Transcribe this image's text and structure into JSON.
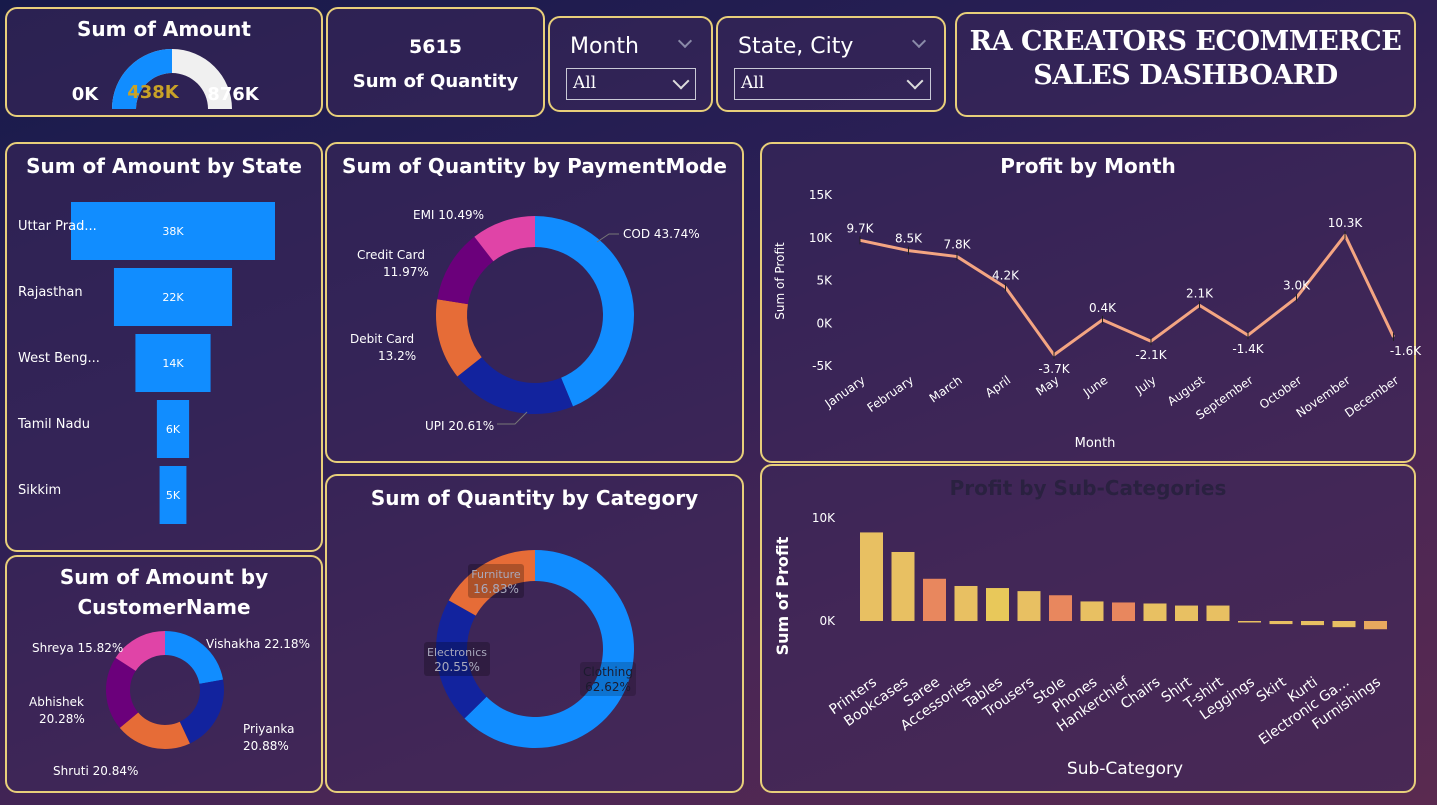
{
  "kpi_amount": {
    "title": "Sum of Amount",
    "min": "0K",
    "value": "438K",
    "max": "876K",
    "fill": 0.5
  },
  "kpi_quantity": {
    "value": "5615",
    "label": "Sum of Quantity"
  },
  "slicer_month": {
    "label": "Month",
    "value": "All"
  },
  "slicer_state": {
    "label": "State, City",
    "value": "All"
  },
  "dashboard_title": {
    "line1": "RA CREATORS ECOMMERCE",
    "line2": "SALES DASHBOARD"
  },
  "colors": {
    "border": "#e8cf7a",
    "blue": "#118dff",
    "navy": "#12239e",
    "orange": "#e66c37",
    "purple": "#6b007b",
    "pink": "#e044a7",
    "line": "#f4a582"
  },
  "chart_data": [
    {
      "id": "amount_by_state",
      "type": "bar",
      "title": "Sum of Amount by State",
      "categories": [
        "Uttar Prad...",
        "Rajasthan",
        "West Beng...",
        "Tamil Nadu",
        "Sikkim"
      ],
      "values": [
        38,
        22,
        14,
        6,
        5
      ],
      "value_labels": [
        "38K",
        "22K",
        "14K",
        "6K",
        "5K"
      ]
    },
    {
      "id": "quantity_by_paymentmode",
      "type": "pie",
      "title": "Sum of Quantity by PaymentMode",
      "slices": [
        {
          "name": "COD",
          "value": 43.74,
          "label": "COD 43.74%"
        },
        {
          "name": "UPI",
          "value": 20.61,
          "label": "UPI 20.61%"
        },
        {
          "name": "Debit Card",
          "value": 13.2,
          "label1": "Debit Card",
          "label2": "13.2%"
        },
        {
          "name": "Credit Card",
          "value": 11.97,
          "label1": "Credit Card",
          "label2": "11.97%"
        },
        {
          "name": "EMI",
          "value": 10.49,
          "label": "EMI 10.49%"
        }
      ]
    },
    {
      "id": "profit_by_month",
      "type": "line",
      "title": "Profit by Month",
      "xlabel": "Month",
      "ylabel": "Sum of Profit",
      "yticks": [
        "15K",
        "10K",
        "5K",
        "0K",
        "-5K"
      ],
      "ylim": [
        -5000,
        15000
      ],
      "categories": [
        "January",
        "February",
        "March",
        "April",
        "May",
        "June",
        "July",
        "August",
        "September",
        "October",
        "November",
        "December"
      ],
      "values": [
        9700,
        8500,
        7800,
        4200,
        -3700,
        400,
        -2100,
        2100,
        -1400,
        3000,
        10300,
        -1600
      ],
      "value_labels": [
        "9.7K",
        "8.5K",
        "7.8K",
        "4.2K",
        "-3.7K",
        "0.4K",
        "-2.1K",
        "2.1K",
        "-1.4K",
        "3.0K",
        "10.3K",
        "-1.6K"
      ]
    },
    {
      "id": "quantity_by_category",
      "type": "pie",
      "title": "Sum of Quantity by Category",
      "slices": [
        {
          "name": "Clothing",
          "value": 62.62,
          "label1": "Clothing",
          "label2": "62.62%"
        },
        {
          "name": "Electronics",
          "value": 20.55,
          "label1": "Electronics",
          "label2": "20.55%"
        },
        {
          "name": "Furniture",
          "value": 16.83,
          "label1": "Furniture",
          "label2": "16.83%"
        }
      ]
    },
    {
      "id": "profit_by_subcategory",
      "type": "bar",
      "title": "Profit by Sub-Categories",
      "xlabel": "Sub-Category",
      "ylabel": "Sum of Profit",
      "yticks": [
        "10K",
        "0K"
      ],
      "ylim": [
        -1000,
        11000
      ],
      "categories": [
        "Printers",
        "Bookcases",
        "Saree",
        "Accessories",
        "Tables",
        "Trousers",
        "Stole",
        "Phones",
        "Hankerchief",
        "Chairs",
        "Shirt",
        "T-shirt",
        "Leggings",
        "Skirt",
        "Kurti",
        "Electronic Ga...",
        "Furnishings"
      ],
      "values": [
        8600,
        6700,
        4100,
        3400,
        3200,
        2900,
        2500,
        1900,
        1800,
        1700,
        1500,
        1500,
        -100,
        -300,
        -400,
        -600,
        -800
      ]
    },
    {
      "id": "amount_by_customer",
      "type": "pie",
      "title": "Sum of Amount by CustomerName",
      "title_line1": "Sum of Amount by",
      "title_line2": "CustomerName",
      "slices": [
        {
          "name": "Vishakha",
          "value": 22.18,
          "label": "Vishakha 22.18%"
        },
        {
          "name": "Priyanka",
          "value": 20.88,
          "label1": "Priyanka",
          "label2": "20.88%"
        },
        {
          "name": "Shruti",
          "value": 20.84,
          "label": "Shruti 20.84%"
        },
        {
          "name": "Abhishek",
          "value": 20.28,
          "label1": "Abhishek",
          "label2": "20.28%"
        },
        {
          "name": "Shreya",
          "value": 15.82,
          "label": "Shreya 15.82%"
        }
      ]
    }
  ]
}
